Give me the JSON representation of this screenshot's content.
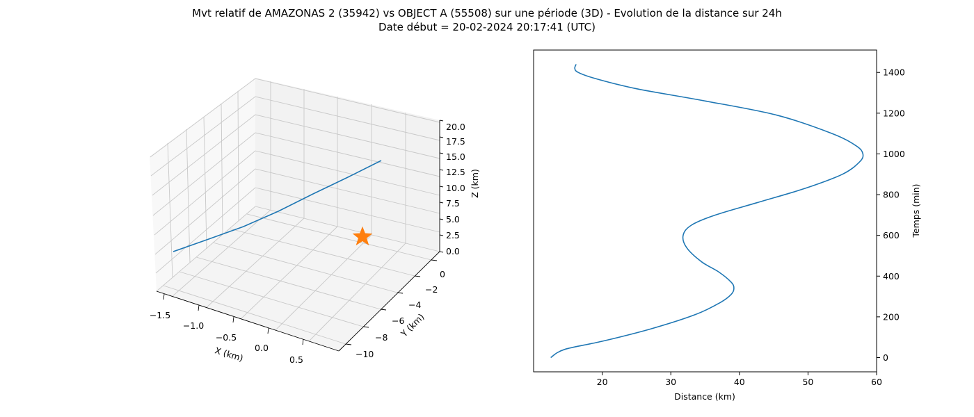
{
  "title_line1": "Mvt relatif de AMAZONAS 2 (35942) vs OBJECT A (55508) sur une période (3D) - Evolution de la distance sur 24h",
  "title_line2": "Date début = 20-02-2024 20:17:41 (UTC)",
  "chart_data": [
    {
      "type": "line3d",
      "xlabel": "X (km)",
      "ylabel": "Y (km)",
      "zlabel": "Z (km)",
      "xlim": [
        -1.6,
        0.8
      ],
      "ylim": [
        -11,
        1
      ],
      "zlim": [
        0,
        20
      ],
      "xticks": [
        "−1.5",
        "−1.0",
        "−0.5",
        "0.0",
        "0.5"
      ],
      "yticks": [
        "0",
        "−2",
        "−4",
        "−6",
        "−8",
        "−10"
      ],
      "zticks": [
        "0.0",
        "2.5",
        "5.0",
        "7.5",
        "10.0",
        "12.5",
        "15.0",
        "17.5",
        "20.0"
      ],
      "grid": true,
      "series": [
        {
          "color": "#1f77b4",
          "x": [
            -1.48,
            -1.2,
            -0.9,
            -0.6,
            -0.3,
            0.0,
            0.3,
            0.5
          ],
          "y": [
            -10.2,
            -8.8,
            -7.3,
            -5.8,
            -4.3,
            -2.8,
            -1.3,
            -0.2
          ],
          "z": [
            0.1,
            1.2,
            2.7,
            4.6,
            7.0,
            9.7,
            12.8,
            15.1
          ]
        }
      ],
      "marker": {
        "shape": "star",
        "color": "#ff7f0e",
        "x": 0.45,
        "y": -1.0,
        "z": 0.0
      }
    },
    {
      "type": "line",
      "xlabel": "Distance (km)",
      "ylabel": "Temps (min)",
      "xlim": [
        10,
        60
      ],
      "ylim": [
        -70,
        1510
      ],
      "xticks": [
        "20",
        "30",
        "40",
        "50",
        "60"
      ],
      "yticks": [
        "0",
        "200",
        "400",
        "600",
        "800",
        "1000",
        "1200",
        "1400"
      ],
      "grid": false,
      "y_axis_side": "right",
      "series": [
        {
          "color": "#1f77b4",
          "x": [
            12.5,
            14.5,
            20.0,
            27.0,
            33.5,
            37.2,
            38.8,
            39.2,
            38.8,
            37.0,
            34.5,
            32.3,
            31.8,
            33.0,
            36.5,
            42.5,
            49.5,
            55.0,
            57.5,
            58.0,
            57.0,
            53.5,
            45.5,
            35.0,
            25.0,
            19.0,
            16.5,
            16.0,
            16.2
          ],
          "y": [
            0,
            40,
            80,
            140,
            210,
            270,
            310,
            340,
            370,
            420,
            470,
            540,
            600,
            650,
            700,
            760,
            830,
            900,
            960,
            1000,
            1040,
            1100,
            1190,
            1260,
            1320,
            1370,
            1400,
            1420,
            1440
          ]
        }
      ]
    }
  ]
}
